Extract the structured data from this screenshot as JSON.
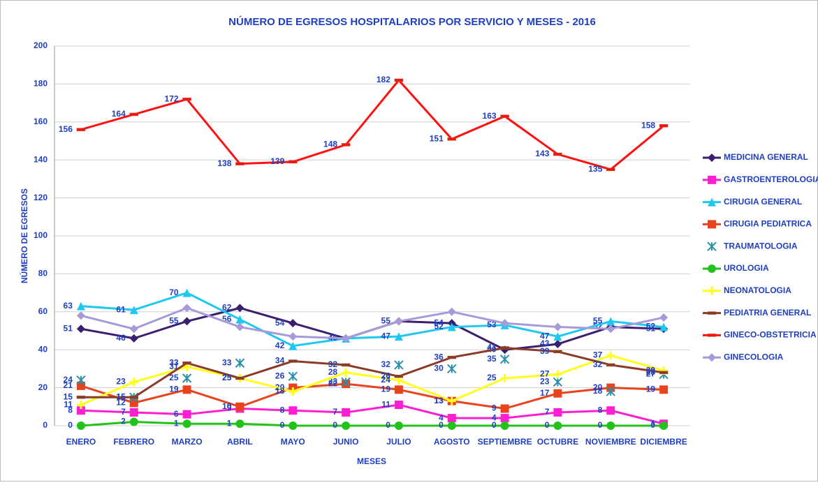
{
  "chart_data": {
    "type": "line",
    "title": "NÚMERO DE EGRESOS HOSPITALARIOS POR SERVICIO Y MESES - 2016",
    "x_label": "MESES",
    "y_label": "NÚMERO DE EGRESOS",
    "categories": [
      "ENERO",
      "FEBRERO",
      "MARZO",
      "ABRIL",
      "MAYO",
      "JUNIO",
      "JULIO",
      "AGOSTO",
      "SEPTIEMBRE",
      "OCTUBRE",
      "NOVIEMBRE",
      "DICIEMBRE"
    ],
    "ylim": [
      0,
      200
    ],
    "yticks": [
      0,
      20,
      40,
      60,
      80,
      100,
      120,
      140,
      160,
      180,
      200
    ],
    "grid": true,
    "legend": "right",
    "series": [
      {
        "name": "MEDICINA GENERAL",
        "color": "#3b1f6e",
        "marker": "diamond",
        "values": [
          51,
          46,
          55,
          62,
          54,
          46,
          55,
          54,
          40,
          43,
          52,
          51
        ]
      },
      {
        "name": "GASTROENTEROLOGIA",
        "color": "#ff1fd2",
        "marker": "square",
        "values": [
          8,
          7,
          6,
          9,
          8,
          7,
          11,
          4,
          4,
          7,
          8,
          1
        ]
      },
      {
        "name": "CIRUGIA GENERAL",
        "color": "#1fc8f0",
        "marker": "triangle",
        "values": [
          63,
          61,
          70,
          56,
          42,
          46,
          47,
          52,
          53,
          47,
          55,
          52
        ]
      },
      {
        "name": "CIRUGIA PEDIATRICA",
        "color": "#e8431c",
        "marker": "square",
        "values": [
          21,
          12,
          19,
          10,
          20,
          22,
          19,
          13,
          9,
          17,
          20,
          19
        ]
      },
      {
        "name": "TRAUMATOLOGIA",
        "color": "#2a8fa8",
        "marker": "star",
        "line": false,
        "values": [
          24,
          15,
          25,
          33,
          26,
          23,
          32,
          30,
          35,
          23,
          18,
          27
        ]
      },
      {
        "name": "UROLOGIA",
        "color": "#22c21b",
        "marker": "circle",
        "values": [
          0,
          2,
          1,
          1,
          0,
          0,
          0,
          0,
          0,
          0,
          0,
          0
        ]
      },
      {
        "name": "NEONATOLOGIA",
        "color": "#ffff1a",
        "marker": "plus",
        "values": [
          11,
          23,
          31,
          25,
          18,
          28,
          24,
          13,
          25,
          27,
          37,
          29
        ]
      },
      {
        "name": "PEDIATRIA GENERAL",
        "color": "#8b3a2a",
        "marker": "dash",
        "values": [
          15,
          15,
          33,
          25,
          34,
          32,
          26,
          36,
          41,
          39,
          32,
          28
        ]
      },
      {
        "name": "GINECO-OBSTETRICIA",
        "color": "#ff1010",
        "marker": "dash",
        "values": [
          156,
          164,
          172,
          138,
          139,
          148,
          182,
          151,
          163,
          143,
          135,
          158
        ]
      },
      {
        "name": "GINECOLOGIA",
        "color": "#a89ad8",
        "marker": "diamond",
        "data_labels": false,
        "values": [
          58,
          51,
          62,
          52,
          47,
          46,
          55,
          60,
          54,
          52,
          51,
          57
        ]
      }
    ]
  }
}
